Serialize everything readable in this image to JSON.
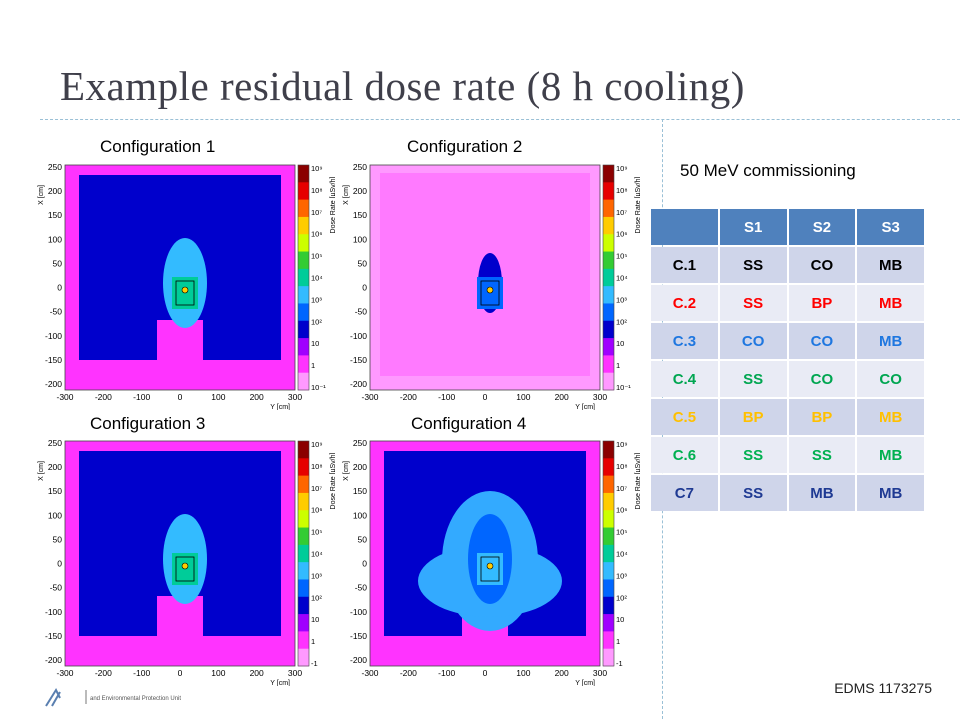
{
  "title": "Example residual dose rate (8 h cooling)",
  "plots": [
    {
      "label": "Configuration 1"
    },
    {
      "label": "Configuration 2"
    },
    {
      "label": "Configuration 3"
    },
    {
      "label": "Configuration 4"
    }
  ],
  "axes": {
    "ylabel": "X [cm]",
    "xlabel": "Y [cm]",
    "zlabel": "Dose Rate [µSv/h]",
    "yticks": [
      "250",
      "200",
      "150",
      "100",
      "50",
      "0",
      "-50",
      "-100",
      "-150",
      "-200"
    ],
    "xticks": [
      "-300",
      "-200",
      "-100",
      "0",
      "100",
      "200",
      "300"
    ],
    "zticks": [
      "10⁹",
      "10⁸",
      "10⁷",
      "10⁶",
      "10⁵",
      "10⁴",
      "10³",
      "10²",
      "10",
      "1",
      "10⁻¹"
    ],
    "zticks_alt_last": "-1"
  },
  "colorscale": [
    "#8b0000",
    "#e60000",
    "#ff6600",
    "#ffcc00",
    "#ccff00",
    "#33cc33",
    "#00cc99",
    "#33bbff",
    "#0066ff",
    "#0000cc",
    "#a000ff",
    "#ff33ff",
    "#ff99ff"
  ],
  "table": {
    "subtitle": "50 MeV commissioning",
    "headers": [
      "",
      "S1",
      "S2",
      "S3"
    ],
    "rows": [
      {
        "cells": [
          "C.1",
          "SS",
          "CO",
          "MB"
        ],
        "color": "#000000"
      },
      {
        "cells": [
          "C.2",
          "SS",
          "BP",
          "MB"
        ],
        "color": "#ff0000"
      },
      {
        "cells": [
          "C.3",
          "CO",
          "CO",
          "MB"
        ],
        "color": "#1f77e0"
      },
      {
        "cells": [
          "C.4",
          "SS",
          "CO",
          "CO"
        ],
        "color": "#00a651"
      },
      {
        "cells": [
          "C.5",
          "BP",
          "BP",
          "MB"
        ],
        "color": "#ffc000"
      },
      {
        "cells": [
          "C.6",
          "SS",
          "SS",
          "MB"
        ],
        "color": "#00b050"
      },
      {
        "cells": [
          "C7",
          "SS",
          "MB",
          "MB"
        ],
        "color": "#1f3a93"
      }
    ]
  },
  "footer": "EDMS 1173275",
  "logo_text": "and Environmental Protection Unit"
}
